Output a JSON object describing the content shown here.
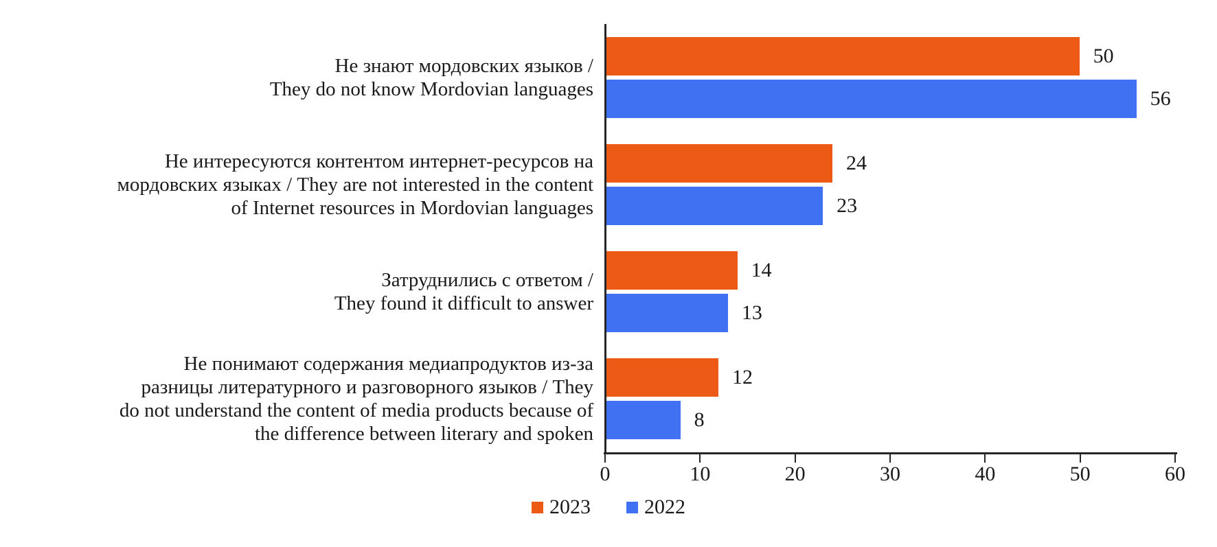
{
  "chart_data": {
    "type": "bar",
    "orientation": "horizontal",
    "title": "",
    "xlabel": "",
    "ylabel": "",
    "categories": [
      [
        "Не знают мордовских языков /",
        "They do not know Mordovian languages"
      ],
      [
        "Не интересуются контентом интернет-ресурсов на",
        "мордовских языках / They are not interested in the content",
        "of Internet resources in Mordovian languages"
      ],
      [
        "Затруднились с ответом /",
        "They found it difficult to answer"
      ],
      [
        "Не понимают содержания медиапродуктов из-за",
        "разницы литературного и разговорного языков / They",
        "do not understand the content of media products because of",
        "the difference between literary and spoken"
      ]
    ],
    "series": [
      {
        "name": "2023",
        "color": "#ED5A16",
        "values": [
          50,
          24,
          14,
          12
        ]
      },
      {
        "name": "2022",
        "color": "#4171F3",
        "values": [
          56,
          23,
          13,
          8
        ]
      }
    ],
    "xlim": [
      0,
      60
    ],
    "x_ticks": [
      0,
      10,
      20,
      30,
      40,
      50,
      60
    ],
    "grid": false,
    "legend_position": "bottom",
    "axis_color": "#262626",
    "text_color": "#1a1a1a"
  }
}
